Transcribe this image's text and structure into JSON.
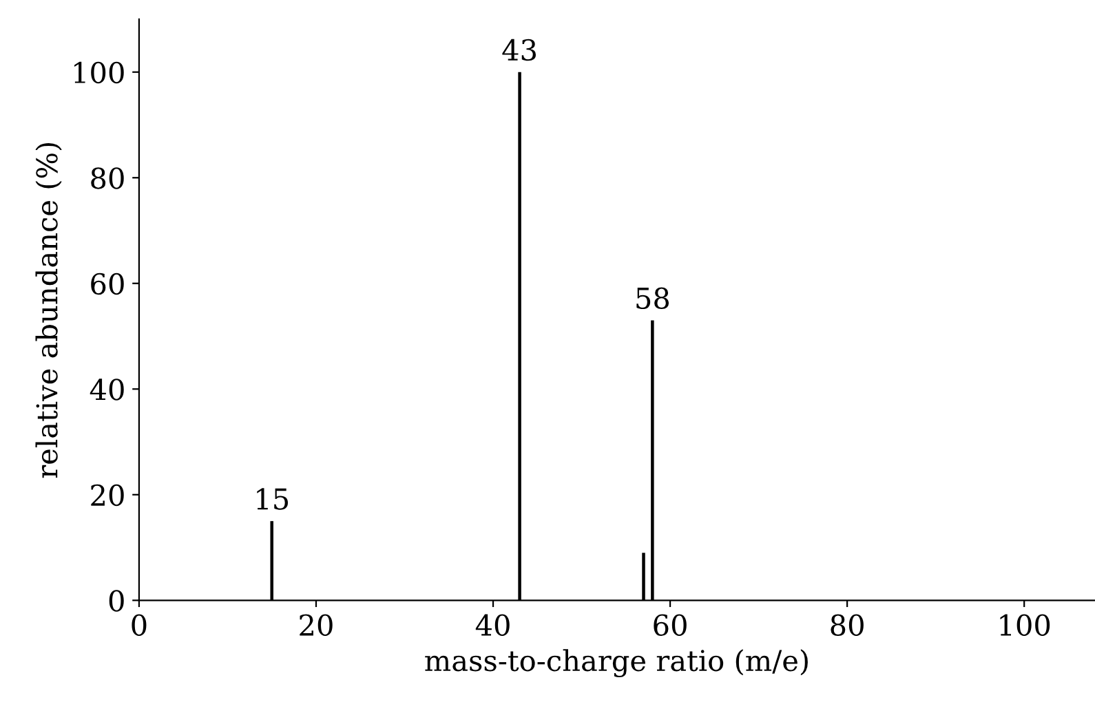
{
  "chart_data": {
    "type": "bar",
    "xlabel": "mass-to-charge ratio (m/e)",
    "ylabel": "relative abundance (%)",
    "x": [
      15,
      43,
      57,
      58
    ],
    "values": [
      15,
      100,
      9,
      53
    ],
    "color": "#000000",
    "xlim": [
      0,
      108
    ],
    "ylim": [
      0,
      110
    ],
    "xticks": [
      0,
      20,
      40,
      60,
      80,
      100
    ],
    "yticks": [
      0,
      20,
      40,
      60,
      80,
      100
    ],
    "grid": false,
    "annotations": [
      {
        "text": "15",
        "x": 15,
        "y": 15
      },
      {
        "text": "43",
        "x": 43,
        "y": 100
      },
      {
        "text": "58",
        "x": 58,
        "y": 53
      }
    ]
  }
}
